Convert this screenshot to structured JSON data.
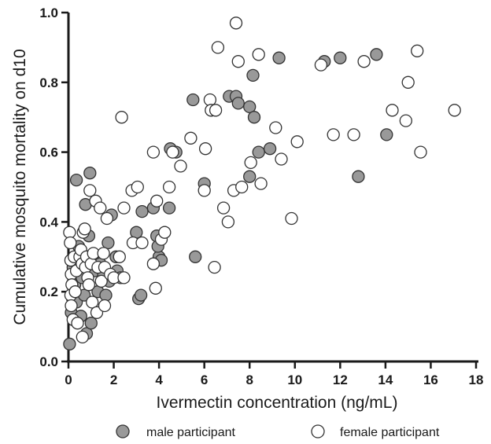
{
  "chart_data": {
    "type": "scatter",
    "xlabel": "Ivermectin concentration (ng/mL)",
    "ylabel": "Cumulative mosquito mortality on d10",
    "xlim": [
      0,
      18
    ],
    "ylim": [
      0,
      1.0
    ],
    "x_ticks": [
      "0",
      "2",
      "4",
      "6",
      "8",
      "10",
      "12",
      "14",
      "16",
      "18"
    ],
    "y_ticks": [
      "0.0",
      "0.2",
      "0.4",
      "0.6",
      "0.8",
      "1.0"
    ],
    "grid": false,
    "legend_position": "bottom",
    "colors": {
      "male": "#999999",
      "female": "#ffffff",
      "stroke": "#333333"
    },
    "series": [
      {
        "name": "male participant",
        "marker": "filled-circle",
        "points": [
          [
            0.05,
            0.05
          ],
          [
            0.12,
            0.14
          ],
          [
            0.18,
            0.18
          ],
          [
            0.2,
            0.27
          ],
          [
            0.28,
            0.22
          ],
          [
            0.35,
            0.17
          ],
          [
            0.4,
            0.29
          ],
          [
            0.45,
            0.33
          ],
          [
            0.35,
            0.52
          ],
          [
            0.75,
            0.45
          ],
          [
            0.95,
            0.54
          ],
          [
            0.9,
            0.36
          ],
          [
            0.6,
            0.24
          ],
          [
            0.55,
            0.13
          ],
          [
            0.7,
            0.19
          ],
          [
            1.05,
            0.3
          ],
          [
            1.15,
            0.26
          ],
          [
            1.3,
            0.2
          ],
          [
            1.4,
            0.28
          ],
          [
            1.55,
            0.25
          ],
          [
            1.65,
            0.19
          ],
          [
            1.8,
            0.23
          ],
          [
            1.75,
            0.34
          ],
          [
            1.9,
            0.42
          ],
          [
            2.1,
            0.3
          ],
          [
            2.15,
            0.26
          ],
          [
            2.3,
            0.24
          ],
          [
            0.8,
            0.08
          ],
          [
            1.0,
            0.11
          ],
          [
            3.0,
            0.37
          ],
          [
            3.1,
            0.18
          ],
          [
            3.2,
            0.19
          ],
          [
            3.25,
            0.43
          ],
          [
            3.75,
            0.44
          ],
          [
            3.9,
            0.36
          ],
          [
            4.0,
            0.3
          ],
          [
            3.95,
            0.33
          ],
          [
            4.1,
            0.29
          ],
          [
            4.45,
            0.44
          ],
          [
            4.5,
            0.61
          ],
          [
            4.75,
            0.6
          ],
          [
            5.5,
            0.75
          ],
          [
            5.6,
            0.3
          ],
          [
            6.0,
            0.51
          ],
          [
            7.1,
            0.76
          ],
          [
            7.4,
            0.76
          ],
          [
            7.5,
            0.74
          ],
          [
            8.0,
            0.73
          ],
          [
            8.15,
            0.82
          ],
          [
            8.2,
            0.7
          ],
          [
            8.0,
            0.53
          ],
          [
            8.4,
            0.6
          ],
          [
            8.9,
            0.61
          ],
          [
            9.3,
            0.87
          ],
          [
            11.3,
            0.86
          ],
          [
            12.0,
            0.87
          ],
          [
            12.8,
            0.53
          ],
          [
            13.6,
            0.88
          ],
          [
            14.05,
            0.65
          ]
        ]
      },
      {
        "name": "female participant",
        "marker": "open-circle",
        "points": [
          [
            0.05,
            0.37
          ],
          [
            0.08,
            0.34
          ],
          [
            0.1,
            0.29
          ],
          [
            0.12,
            0.25
          ],
          [
            0.15,
            0.22
          ],
          [
            0.1,
            0.19
          ],
          [
            0.12,
            0.16
          ],
          [
            0.2,
            0.12
          ],
          [
            0.25,
            0.3
          ],
          [
            0.35,
            0.26
          ],
          [
            0.3,
            0.2
          ],
          [
            0.4,
            0.11
          ],
          [
            0.5,
            0.3
          ],
          [
            0.55,
            0.32
          ],
          [
            0.6,
            0.28
          ],
          [
            0.62,
            0.07
          ],
          [
            0.65,
            0.37
          ],
          [
            0.72,
            0.38
          ],
          [
            0.75,
            0.27
          ],
          [
            0.8,
            0.3
          ],
          [
            0.85,
            0.24
          ],
          [
            0.95,
            0.49
          ],
          [
            0.9,
            0.22
          ],
          [
            1.0,
            0.28
          ],
          [
            1.05,
            0.17
          ],
          [
            1.1,
            0.31
          ],
          [
            1.2,
            0.46
          ],
          [
            1.25,
            0.14
          ],
          [
            1.3,
            0.27
          ],
          [
            1.4,
            0.44
          ],
          [
            1.45,
            0.23
          ],
          [
            1.55,
            0.31
          ],
          [
            1.6,
            0.27
          ],
          [
            1.6,
            0.16
          ],
          [
            1.7,
            0.41
          ],
          [
            1.85,
            0.25
          ],
          [
            2.0,
            0.24
          ],
          [
            2.25,
            0.3
          ],
          [
            2.35,
            0.7
          ],
          [
            2.45,
            0.44
          ],
          [
            2.45,
            0.24
          ],
          [
            2.8,
            0.49
          ],
          [
            2.85,
            0.34
          ],
          [
            3.05,
            0.5
          ],
          [
            3.25,
            0.34
          ],
          [
            3.75,
            0.28
          ],
          [
            3.75,
            0.6
          ],
          [
            3.85,
            0.21
          ],
          [
            3.9,
            0.46
          ],
          [
            4.1,
            0.35
          ],
          [
            4.25,
            0.37
          ],
          [
            4.45,
            0.5
          ],
          [
            4.6,
            0.6
          ],
          [
            4.95,
            0.56
          ],
          [
            5.4,
            0.64
          ],
          [
            6.0,
            0.49
          ],
          [
            6.05,
            0.61
          ],
          [
            6.25,
            0.75
          ],
          [
            6.3,
            0.72
          ],
          [
            6.45,
            0.27
          ],
          [
            6.5,
            0.72
          ],
          [
            6.6,
            0.9
          ],
          [
            6.85,
            0.44
          ],
          [
            7.05,
            0.4
          ],
          [
            7.3,
            0.49
          ],
          [
            7.4,
            0.97
          ],
          [
            7.5,
            0.86
          ],
          [
            7.65,
            0.5
          ],
          [
            8.05,
            0.57
          ],
          [
            8.4,
            0.88
          ],
          [
            8.5,
            0.51
          ],
          [
            9.15,
            0.67
          ],
          [
            9.4,
            0.58
          ],
          [
            9.85,
            0.41
          ],
          [
            10.1,
            0.63
          ],
          [
            11.15,
            0.85
          ],
          [
            11.7,
            0.65
          ],
          [
            12.6,
            0.65
          ],
          [
            13.05,
            0.86
          ],
          [
            14.3,
            0.72
          ],
          [
            14.9,
            0.69
          ],
          [
            15.0,
            0.8
          ],
          [
            15.4,
            0.89
          ],
          [
            15.55,
            0.6
          ],
          [
            17.05,
            0.72
          ]
        ]
      }
    ]
  }
}
